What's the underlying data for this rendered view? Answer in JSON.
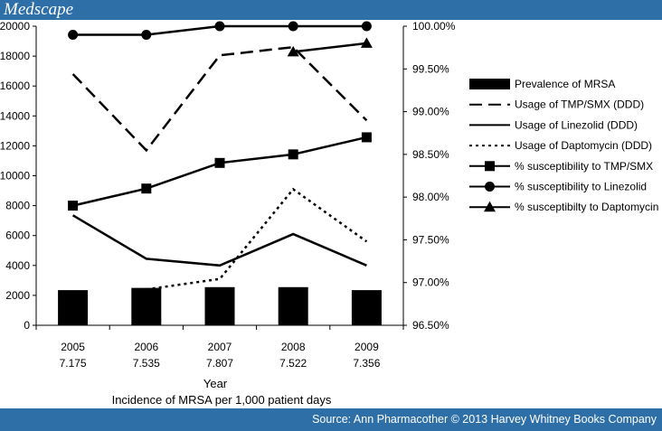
{
  "header": {
    "logo_text": "Medscape"
  },
  "footer": {
    "source_text": "Source: Ann Pharmacother © 2013 Harvey Whitney Books Company"
  },
  "colors": {
    "brand_bar": "#2f6fa8",
    "series": "#000000"
  },
  "chart_data": {
    "type": "bar",
    "categories": [
      "2005",
      "2006",
      "2007",
      "2008",
      "2009"
    ],
    "category_sublabels": [
      "7.175",
      "7.535",
      "7.807",
      "7.522",
      "7.356"
    ],
    "xlabel": "Year",
    "xlabel_secondary": "Incidence of MRSA per  1,000 patient days",
    "y_left": {
      "min": 0,
      "max": 20000,
      "ticks": [
        "0",
        "2000",
        "4000",
        "6000",
        "8000",
        "10000",
        "12000",
        "14000",
        "16000",
        "18000",
        "20000"
      ]
    },
    "y_right": {
      "min": 96.5,
      "max": 100.0,
      "ticks": [
        "96.50%",
        "97.00%",
        "97.50%",
        "98.00%",
        "98.50%",
        "99.00%",
        "99.50%",
        "100.00%"
      ]
    },
    "legend_position": "right",
    "series": [
      {
        "name": "Prevalence of MRSA",
        "type": "bar",
        "axis": "left",
        "values": [
          2350,
          2500,
          2550,
          2550,
          2350
        ]
      },
      {
        "name": "Usage of TMP/SMX (DDD)",
        "type": "line",
        "style": "dashed",
        "axis": "left",
        "values": [
          16800,
          11700,
          18050,
          18600,
          13700
        ]
      },
      {
        "name": "Usage of Linezolid (DDD)",
        "type": "line",
        "style": "solid",
        "axis": "left",
        "values": [
          7350,
          4450,
          4000,
          6100,
          4000
        ]
      },
      {
        "name": "Usage of Daptomycin (DDD)",
        "type": "line",
        "style": "dotted",
        "axis": "left",
        "values": [
          null,
          2400,
          3100,
          9100,
          5600
        ]
      },
      {
        "name": "% susceptibility to TMP/SMX",
        "type": "line",
        "marker": "square",
        "axis": "right",
        "values": [
          97.9,
          98.1,
          98.4,
          98.5,
          98.7
        ]
      },
      {
        "name": "% susceptibility to Linezolid",
        "type": "line",
        "marker": "circle",
        "axis": "right",
        "values": [
          99.9,
          99.9,
          100.0,
          100.0,
          100.0
        ]
      },
      {
        "name": "% susceptibilty to Daptomycin",
        "type": "line",
        "marker": "triangle",
        "axis": "right",
        "values": [
          null,
          null,
          null,
          99.7,
          99.8
        ]
      }
    ]
  }
}
